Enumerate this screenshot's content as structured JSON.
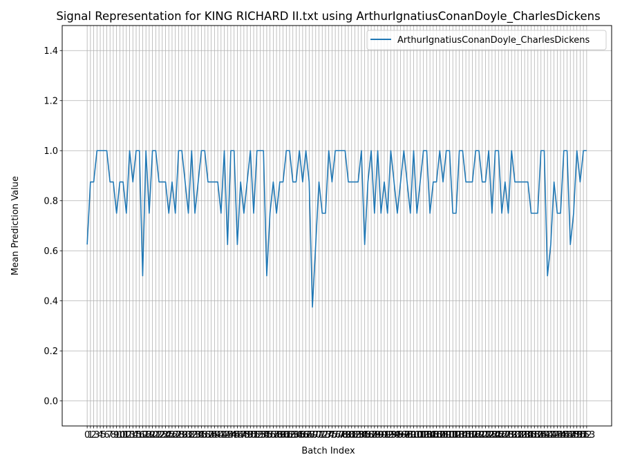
{
  "chart_data": {
    "type": "line",
    "title": "Signal Representation for KING RICHARD II.txt using ArthurIgnatiusConanDoyle_CharlesDickens",
    "xlabel": "Batch Index",
    "ylabel": "Mean Prediction Value",
    "ylim": [
      -0.1,
      1.5
    ],
    "yticks": [
      0.0,
      0.2,
      0.4,
      0.6,
      0.8,
      1.0,
      1.2,
      1.4
    ],
    "ytick_labels": [
      "0.0",
      "0.2",
      "0.4",
      "0.6",
      "0.8",
      "1.0",
      "1.2",
      "1.4"
    ],
    "xlim": [
      -7.65,
      160.65
    ],
    "x_start": 0,
    "x_end": 153,
    "grid": true,
    "legend_position": "top-right",
    "series": [
      {
        "name": "ArthurIgnatiusConanDoyle_CharlesDickens",
        "color": "#1f77b4",
        "values": [
          0.625,
          0.875,
          0.875,
          1.0,
          1.0,
          1.0,
          1.0,
          0.875,
          0.875,
          0.75,
          0.875,
          0.875,
          0.75,
          1.0,
          0.875,
          1.0,
          1.0,
          0.5,
          1.0,
          0.75,
          1.0,
          1.0,
          0.875,
          0.875,
          0.875,
          0.75,
          0.875,
          0.75,
          1.0,
          1.0,
          0.875,
          0.75,
          1.0,
          0.75,
          0.875,
          1.0,
          1.0,
          0.875,
          0.875,
          0.875,
          0.875,
          0.75,
          1.0,
          0.625,
          1.0,
          1.0,
          0.625,
          0.875,
          0.75,
          0.875,
          1.0,
          0.75,
          1.0,
          1.0,
          1.0,
          0.5,
          0.75,
          0.875,
          0.75,
          0.875,
          0.875,
          1.0,
          1.0,
          0.875,
          0.875,
          1.0,
          0.875,
          1.0,
          0.875,
          0.375,
          0.625,
          0.875,
          0.75,
          0.75,
          1.0,
          0.875,
          1.0,
          1.0,
          1.0,
          1.0,
          0.875,
          0.875,
          0.875,
          0.875,
          1.0,
          0.625,
          0.875,
          1.0,
          0.75,
          1.0,
          0.75,
          0.875,
          0.75,
          1.0,
          0.875,
          0.75,
          0.875,
          1.0,
          0.875,
          0.75,
          1.0,
          0.75,
          0.875,
          1.0,
          1.0,
          0.75,
          0.875,
          0.875,
          1.0,
          0.875,
          1.0,
          1.0,
          0.75,
          0.75,
          1.0,
          1.0,
          0.875,
          0.875,
          0.875,
          1.0,
          1.0,
          0.875,
          0.875,
          1.0,
          0.75,
          1.0,
          1.0,
          0.75,
          0.875,
          0.75,
          1.0,
          0.875,
          0.875,
          0.875,
          0.875,
          0.875,
          0.75,
          0.75,
          0.75,
          1.0,
          1.0,
          0.5,
          0.625,
          0.875,
          0.75,
          0.75,
          1.0,
          1.0,
          0.625,
          0.75,
          1.0,
          0.875,
          1.0,
          1.0
        ]
      }
    ]
  }
}
